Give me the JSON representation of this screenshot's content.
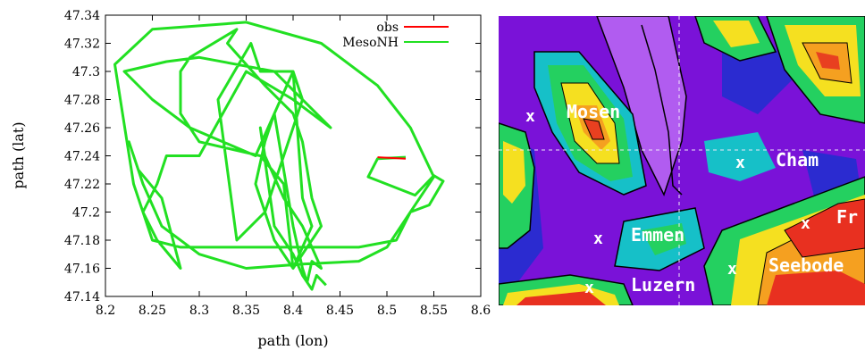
{
  "chart_data": {
    "type": "line",
    "xlabel": "path (lon)",
    "ylabel": "path (lat)",
    "xlim": [
      8.2,
      8.6
    ],
    "ylim": [
      47.14,
      47.34
    ],
    "x_ticks": [
      "8.2",
      "8.25",
      "8.3",
      "8.35",
      "8.4",
      "8.45",
      "8.5",
      "8.55",
      "8.6"
    ],
    "y_ticks": [
      "47.14",
      "47.16",
      "47.18",
      "47.2",
      "47.22",
      "47.24",
      "47.26",
      "47.28",
      "47.3",
      "47.32",
      "47.34"
    ],
    "legend_position": "top-right",
    "series": [
      {
        "name": "obs",
        "color": "#ff0000",
        "x": [
          8.49,
          8.52
        ],
        "y": [
          47.239,
          47.238
        ]
      },
      {
        "name": "MesoNH",
        "color": "#22e022",
        "x": [
          8.52,
          8.49,
          8.48,
          8.53,
          8.55,
          8.56,
          8.545,
          8.525,
          8.51,
          8.47,
          8.4,
          8.33,
          8.28,
          8.25,
          8.23,
          8.21,
          8.25,
          8.35,
          8.43,
          8.49,
          8.525,
          8.55,
          8.53,
          8.5,
          8.47,
          8.41,
          8.35,
          8.3,
          8.26,
          8.24,
          8.225,
          8.235,
          8.26,
          8.28,
          8.255,
          8.24,
          8.255,
          8.265,
          8.3,
          8.35,
          8.4,
          8.44,
          8.38,
          8.3,
          8.265,
          8.22,
          8.25,
          8.29,
          8.36,
          8.4,
          8.41,
          8.38,
          8.37,
          8.34,
          8.32,
          8.355,
          8.365,
          8.4,
          8.41,
          8.42,
          8.4,
          8.39,
          8.365,
          8.3,
          8.28,
          8.28,
          8.29,
          8.34,
          8.33,
          8.37,
          8.4,
          8.41,
          8.42,
          8.43,
          8.41,
          8.4,
          8.38,
          8.36,
          8.37,
          8.38,
          8.4,
          8.41,
          8.415,
          8.42,
          8.43,
          8.41,
          8.39,
          8.37,
          8.365,
          8.38,
          8.4,
          8.41,
          8.42,
          8.425,
          8.435
        ],
        "y": [
          47.239,
          47.238,
          47.225,
          47.212,
          47.226,
          47.222,
          47.205,
          47.2,
          47.18,
          47.175,
          47.175,
          47.175,
          47.175,
          47.18,
          47.22,
          47.305,
          47.33,
          47.335,
          47.32,
          47.29,
          47.26,
          47.225,
          47.205,
          47.175,
          47.165,
          47.163,
          47.16,
          47.17,
          47.19,
          47.22,
          47.25,
          47.23,
          47.21,
          47.16,
          47.18,
          47.2,
          47.22,
          47.24,
          47.24,
          47.3,
          47.28,
          47.26,
          47.3,
          47.31,
          47.307,
          47.3,
          47.28,
          47.26,
          47.24,
          47.3,
          47.28,
          47.22,
          47.2,
          47.18,
          47.28,
          47.32,
          47.3,
          47.3,
          47.21,
          47.19,
          47.16,
          47.22,
          47.24,
          47.25,
          47.27,
          47.3,
          47.31,
          47.33,
          47.32,
          47.29,
          47.27,
          47.25,
          47.21,
          47.19,
          47.17,
          47.16,
          47.18,
          47.22,
          47.25,
          47.27,
          47.19,
          47.16,
          47.15,
          47.165,
          47.16,
          47.19,
          47.21,
          47.24,
          47.26,
          47.19,
          47.17,
          47.155,
          47.145,
          47.155,
          47.148
        ]
      }
    ]
  },
  "map": {
    "labels": [
      {
        "text": "Mosen"
      },
      {
        "text": "Cham"
      },
      {
        "text": "Fr"
      },
      {
        "text": "Emmen"
      },
      {
        "text": "Seebode"
      },
      {
        "text": "Luzern"
      }
    ]
  }
}
